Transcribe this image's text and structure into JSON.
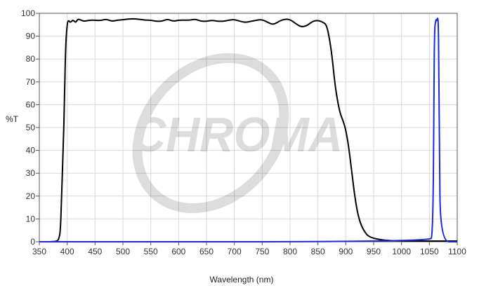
{
  "chart_data": {
    "type": "line",
    "xlabel": "Wavelength (nm)",
    "ylabel": "%T",
    "xlim": [
      350,
      1100
    ],
    "ylim": [
      0,
      100
    ],
    "xticks": [
      350,
      400,
      450,
      500,
      550,
      600,
      650,
      700,
      750,
      800,
      850,
      900,
      950,
      1000,
      1050,
      1100
    ],
    "yticks": [
      0,
      10,
      20,
      30,
      40,
      50,
      60,
      70,
      80,
      90,
      100
    ],
    "grid": true,
    "legend": "none",
    "watermark": "CHROMA",
    "series": [
      {
        "color": "#000000",
        "x": [
          350,
          380,
          385,
          388,
          390,
          393,
          395,
          397,
          400,
          403,
          405,
          408,
          410,
          413,
          415,
          418,
          420,
          425,
          430,
          440,
          450,
          460,
          470,
          480,
          490,
          500,
          510,
          520,
          530,
          540,
          550,
          560,
          570,
          580,
          590,
          600,
          610,
          620,
          630,
          640,
          650,
          660,
          670,
          680,
          690,
          700,
          710,
          720,
          730,
          740,
          750,
          760,
          770,
          780,
          790,
          800,
          810,
          820,
          830,
          840,
          850,
          860,
          865,
          870,
          875,
          880,
          885,
          890,
          895,
          900,
          905,
          910,
          915,
          920,
          925,
          930,
          935,
          940,
          950,
          960,
          970,
          980,
          1000,
          1020,
          1050,
          1080,
          1100
        ],
        "y": [
          0,
          0,
          1,
          5,
          20,
          42,
          60,
          85,
          96,
          97,
          96,
          96.5,
          97,
          96.5,
          96,
          97,
          97.5,
          97,
          96.5,
          97,
          97,
          96.8,
          97.5,
          96.5,
          97,
          97.2,
          97.5,
          97.6,
          97.4,
          97,
          97,
          96.5,
          96.5,
          97.5,
          96.5,
          97,
          97,
          97,
          97.5,
          96.5,
          96.5,
          97,
          96.5,
          96.5,
          97,
          97.3,
          96.5,
          96,
          96.5,
          97,
          97.3,
          96,
          95,
          96.5,
          97.5,
          97.3,
          95.5,
          94,
          94.5,
          96.5,
          97,
          96,
          95,
          90,
          82,
          70,
          62,
          56,
          53,
          49,
          42,
          32,
          22,
          14,
          9,
          6,
          4,
          2.5,
          1.5,
          1,
          0.7,
          0.5,
          0.4,
          0.3,
          0.3,
          0.3,
          0.3
        ]
      },
      {
        "color": "#1a2bd6",
        "x": [
          350,
          1052,
          1055,
          1057,
          1058,
          1059,
          1060,
          1061,
          1062,
          1063,
          1064,
          1065,
          1066,
          1067,
          1068,
          1070,
          1100
        ],
        "y": [
          0,
          0,
          3,
          20,
          60,
          88,
          95,
          96,
          97.5,
          96.5,
          97.5,
          98,
          96.5,
          80,
          40,
          0,
          0
        ]
      }
    ]
  }
}
